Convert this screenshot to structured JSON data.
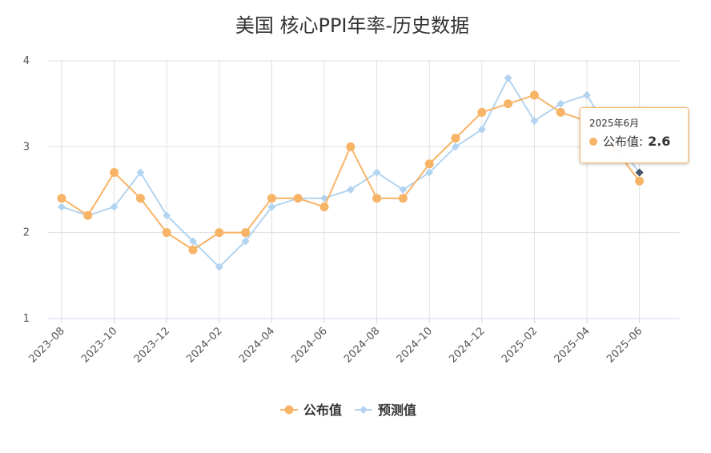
{
  "title": "美国 核心PPI年率-历史数据",
  "colors": {
    "published": "#f7b466",
    "forecast": "#b3d4f0",
    "grid": "#e0e0e0",
    "axis_text": "#555555",
    "title_text": "#333333"
  },
  "chart_data": {
    "type": "line",
    "x": [
      "2023-08",
      "2023-09",
      "2023-10",
      "2023-11",
      "2023-12",
      "2024-01",
      "2024-02",
      "2024-03",
      "2024-04",
      "2024-05",
      "2024-06",
      "2024-07",
      "2024-08",
      "2024-09",
      "2024-10",
      "2024-11",
      "2024-12",
      "2025-01",
      "2025-02",
      "2025-03",
      "2025-04",
      "2025-05",
      "2025-06"
    ],
    "x_tick_labels": [
      "2023–08",
      "2023–10",
      "2023–12",
      "2024–02",
      "2024–04",
      "2024–06",
      "2024–08",
      "2024–10",
      "2024–12",
      "2025–02",
      "2025–04",
      "2025–06"
    ],
    "y_ticks": [
      1,
      2,
      3,
      4
    ],
    "ylim": [
      1,
      4
    ],
    "grid": true,
    "legend_position": "bottom-center",
    "series": [
      {
        "name": "公布值",
        "marker": "circle",
        "values": [
          2.4,
          2.2,
          2.7,
          2.4,
          2.0,
          1.8,
          2.0,
          2.0,
          2.4,
          2.4,
          2.3,
          3.0,
          2.4,
          2.4,
          2.8,
          3.1,
          3.4,
          3.5,
          3.6,
          3.4,
          3.3,
          3.0,
          2.6
        ]
      },
      {
        "name": "预测值",
        "marker": "diamond",
        "values": [
          2.3,
          2.2,
          2.3,
          2.7,
          2.2,
          1.9,
          1.6,
          1.9,
          2.3,
          2.4,
          2.4,
          2.5,
          2.7,
          2.5,
          2.7,
          3.0,
          3.2,
          3.8,
          3.3,
          3.5,
          3.6,
          3.1,
          2.7
        ]
      }
    ]
  },
  "tooltip": {
    "date": "2025年6月",
    "series_label": "公布值:",
    "value": "2.6"
  }
}
